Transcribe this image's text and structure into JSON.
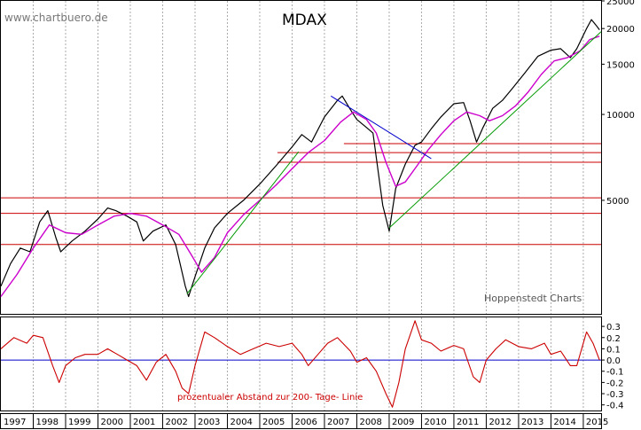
{
  "chart_data": [
    {
      "type": "line",
      "title": "MDAX",
      "watermark": "www.chartbuero.de",
      "source": "Hoppenstedt Charts",
      "y_scale": "log",
      "ylim": [
        2000,
        25000
      ],
      "y_ticks": [
        25000,
        20000,
        15000,
        10000,
        5000
      ],
      "x_range": [
        1997.0,
        2015.55
      ],
      "grid": "vertical dashed lines at each year",
      "series": [
        {
          "name": "",
          "color": "#000000",
          "x": [
            1997.0,
            1997.3,
            1997.6,
            1997.9,
            1998.2,
            1998.45,
            1998.7,
            1998.85,
            1999.2,
            1999.6,
            2000.0,
            2000.3,
            2000.55,
            2000.9,
            2001.2,
            2001.4,
            2001.7,
            2002.1,
            2002.4,
            2002.7,
            2002.8,
            2003.0,
            2003.3,
            2003.6,
            2004.0,
            2004.5,
            2005.0,
            2005.5,
            2006.0,
            2006.3,
            2006.6,
            2007.0,
            2007.4,
            2007.55,
            2007.8,
            2008.0,
            2008.3,
            2008.5,
            2008.8,
            2009.0,
            2009.2,
            2009.5,
            2009.8,
            2010.0,
            2010.3,
            2010.6,
            2011.0,
            2011.3,
            2011.5,
            2011.7,
            2011.9,
            2012.2,
            2012.5,
            2012.8,
            2013.2,
            2013.6,
            2014.0,
            2014.3,
            2014.6,
            2014.8,
            2015.1,
            2015.25,
            2015.4,
            2015.5
          ],
          "values": [
            2500,
            3000,
            3400,
            3300,
            4200,
            4600,
            3700,
            3300,
            3600,
            3900,
            4300,
            4700,
            4600,
            4400,
            4200,
            3600,
            3900,
            4100,
            3500,
            2500,
            2300,
            2700,
            3400,
            4000,
            4500,
            5000,
            5700,
            6600,
            7700,
            8500,
            8000,
            9800,
            11200,
            11600,
            10400,
            9600,
            9000,
            8600,
            4800,
            3900,
            5500,
            6700,
            7800,
            8000,
            8900,
            9800,
            10900,
            11000,
            9500,
            8000,
            9000,
            10500,
            11200,
            12300,
            14000,
            16000,
            16800,
            17000,
            15800,
            17000,
            20000,
            21500,
            20500,
            19800
          ]
        },
        {
          "name": "",
          "color": "#cc00cc",
          "x": [
            1997.0,
            1997.5,
            1998.0,
            1998.5,
            1999.0,
            1999.5,
            2000.0,
            2000.5,
            2001.0,
            2001.5,
            2002.0,
            2002.5,
            2002.9,
            2003.2,
            2003.6,
            2004.0,
            2004.5,
            2005.0,
            2005.5,
            2006.0,
            2006.5,
            2007.0,
            2007.5,
            2007.9,
            2008.3,
            2008.6,
            2008.9,
            2009.2,
            2009.5,
            2009.9,
            2010.2,
            2010.6,
            2011.0,
            2011.4,
            2011.8,
            2012.1,
            2012.5,
            2012.9,
            2013.3,
            2013.7,
            2014.1,
            2014.5,
            2014.9,
            2015.2,
            2015.5
          ],
          "values": [
            2300,
            2750,
            3400,
            4100,
            3850,
            3800,
            4100,
            4400,
            4500,
            4400,
            4100,
            3800,
            3200,
            2800,
            3150,
            3850,
            4450,
            5000,
            5650,
            6450,
            7350,
            8100,
            9400,
            10200,
            9600,
            8600,
            6800,
            5600,
            5800,
            6700,
            7500,
            8500,
            9500,
            10200,
            9900,
            9500,
            9900,
            10700,
            12000,
            13800,
            15400,
            15800,
            16700,
            18300,
            18800
          ]
        }
      ],
      "trendlines": [
        {
          "color": "#009900",
          "x": [
            2002.75,
            2006.2
          ],
          "values": [
            2350,
            7400
          ]
        },
        {
          "color": "#009900",
          "x": [
            2009.0,
            2015.55
          ],
          "values": [
            4000,
            19500
          ]
        },
        {
          "color": "#0000cc",
          "x": [
            2007.2,
            2010.3
          ],
          "values": [
            11600,
            7000
          ]
        }
      ],
      "horizontal_lines": [
        {
          "color": "#cc0000",
          "value": 7900,
          "x_start": 2007.6
        },
        {
          "color": "#cc0000",
          "value": 7350,
          "x_start": 2005.55
        },
        {
          "color": "#cc0000",
          "value": 6800,
          "x_start": 2005.55
        },
        {
          "color": "#cc0000",
          "value": 5100,
          "x_start": 1997.0
        },
        {
          "color": "#cc0000",
          "value": 4500,
          "x_start": 1997.0
        },
        {
          "color": "#cc0000",
          "value": 3500,
          "x_start": 1997.0
        }
      ]
    },
    {
      "type": "line",
      "annotation": "prozentualer Abstand zur 200- Tage- Linie",
      "ylim": [
        -0.45,
        0.38
      ],
      "y_ticks": [
        0.3,
        0.2,
        0.1,
        0.0,
        -0.1,
        -0.2,
        -0.3,
        -0.4
      ],
      "y_tick_labels": [
        "0.3",
        "0.2",
        "0.1",
        "0.0",
        "-0.1",
        "-0.2",
        "-0.3",
        "-0.4"
      ],
      "zero_line_color": "#0000cc",
      "series": [
        {
          "name": "",
          "color": "#cc0000",
          "x": [
            1997.0,
            1997.4,
            1997.8,
            1998.0,
            1998.3,
            1998.6,
            1998.8,
            1999.0,
            1999.3,
            1999.6,
            2000.0,
            2000.3,
            2000.6,
            2000.9,
            2001.2,
            2001.5,
            2001.8,
            2002.1,
            2002.4,
            2002.6,
            2002.8,
            2003.0,
            2003.3,
            2003.6,
            2004.0,
            2004.4,
            2004.8,
            2005.2,
            2005.6,
            2006.0,
            2006.3,
            2006.5,
            2006.8,
            2007.1,
            2007.4,
            2007.8,
            2008.0,
            2008.3,
            2008.6,
            2008.9,
            2009.1,
            2009.3,
            2009.5,
            2009.8,
            2010.0,
            2010.3,
            2010.6,
            2011.0,
            2011.3,
            2011.6,
            2011.8,
            2012.0,
            2012.3,
            2012.6,
            2013.0,
            2013.4,
            2013.8,
            2014.0,
            2014.3,
            2014.6,
            2014.8,
            2015.1,
            2015.3,
            2015.5
          ],
          "values": [
            0.1,
            0.2,
            0.15,
            0.22,
            0.2,
            -0.05,
            -0.2,
            -0.05,
            0.02,
            0.05,
            0.05,
            0.1,
            0.05,
            0.0,
            -0.05,
            -0.18,
            -0.02,
            0.05,
            -0.1,
            -0.25,
            -0.3,
            -0.05,
            0.25,
            0.2,
            0.12,
            0.05,
            0.1,
            0.15,
            0.12,
            0.15,
            0.05,
            -0.05,
            0.05,
            0.15,
            0.2,
            0.08,
            -0.02,
            0.02,
            -0.1,
            -0.3,
            -0.42,
            -0.2,
            0.1,
            0.35,
            0.18,
            0.15,
            0.08,
            0.13,
            0.1,
            -0.15,
            -0.2,
            0.0,
            0.1,
            0.18,
            0.12,
            0.1,
            0.15,
            0.05,
            0.08,
            -0.05,
            -0.05,
            0.25,
            0.15,
            0.0
          ]
        }
      ]
    }
  ],
  "x_axis": {
    "years": [
      "1997",
      "1998",
      "1999",
      "2000",
      "2001",
      "2002",
      "2003",
      "2004",
      "2005",
      "2006",
      "2007",
      "2008",
      "2009",
      "2010",
      "2011",
      "2012",
      "2013",
      "2014",
      "2015"
    ]
  }
}
